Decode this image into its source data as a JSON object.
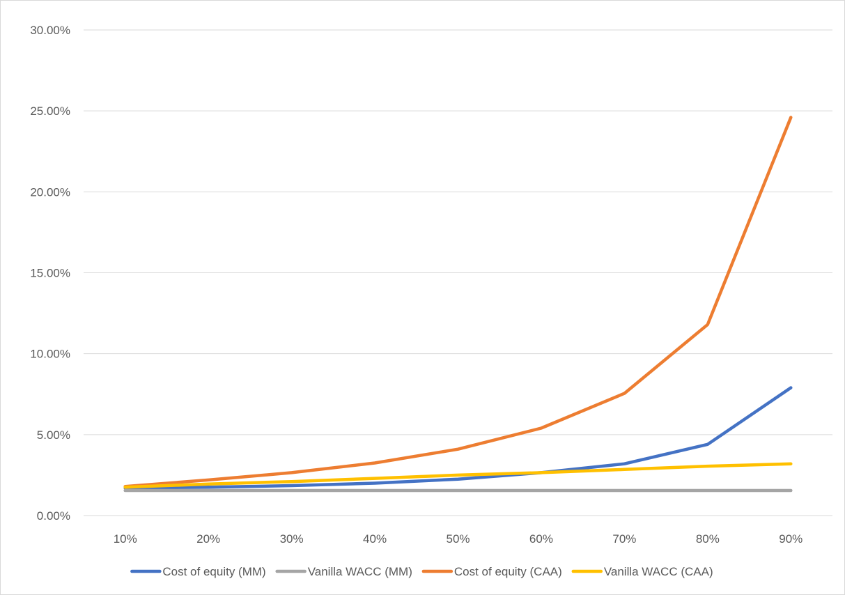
{
  "chart_data": {
    "type": "line",
    "categories": [
      "10%",
      "20%",
      "30%",
      "40%",
      "50%",
      "60%",
      "70%",
      "80%",
      "90%"
    ],
    "y_ticks": [
      "0.00%",
      "5.00%",
      "10.00%",
      "15.00%",
      "20.00%",
      "25.00%",
      "30.00%"
    ],
    "ylim": [
      0,
      30
    ],
    "grid": "horizontal",
    "legend_position": "bottom",
    "series": [
      {
        "name": "Cost of equity (MM)",
        "color": "#4472c4",
        "values": [
          1.7,
          1.75,
          1.85,
          2.0,
          2.25,
          2.65,
          3.2,
          4.4,
          7.9
        ]
      },
      {
        "name": "Vanilla WACC (MM)",
        "color": "#a5a5a5",
        "values": [
          1.55,
          1.55,
          1.55,
          1.55,
          1.55,
          1.55,
          1.55,
          1.55,
          1.55
        ]
      },
      {
        "name": "Cost of equity (CAA)",
        "color": "#ed7d31",
        "values": [
          1.8,
          2.2,
          2.65,
          3.25,
          4.1,
          5.4,
          7.55,
          11.8,
          24.6
        ]
      },
      {
        "name": "Vanilla WACC (CAA)",
        "color": "#ffc000",
        "values": [
          1.75,
          1.95,
          2.1,
          2.3,
          2.5,
          2.65,
          2.85,
          3.05,
          3.2
        ]
      }
    ]
  }
}
